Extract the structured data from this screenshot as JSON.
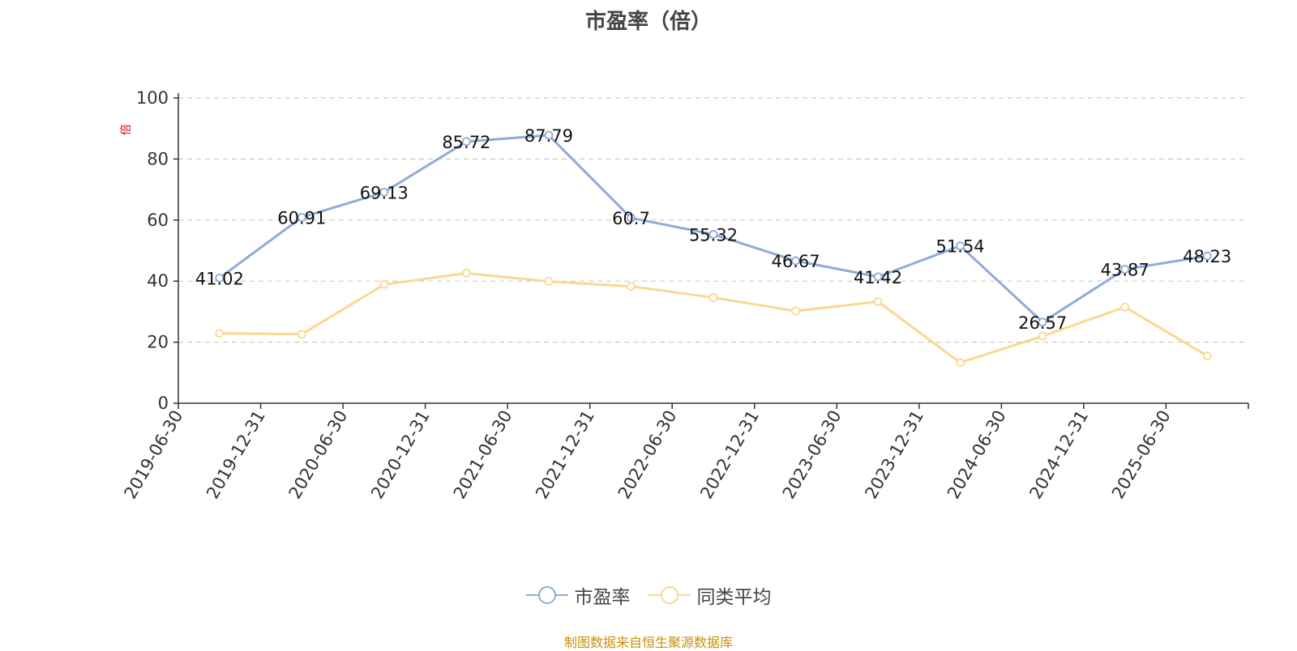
{
  "chart_data": {
    "type": "line",
    "title": "市盈率（倍）",
    "ylabel": "倍",
    "xlabel": "",
    "ylim": [
      0,
      100
    ],
    "yticks": [
      0,
      20,
      40,
      60,
      80,
      100
    ],
    "grid": "horizontal dashed",
    "legend_position": "bottom",
    "categories": [
      "2019-06-30",
      "2019-12-31",
      "2020-06-30",
      "2020-12-31",
      "2021-06-30",
      "2021-12-31",
      "2022-06-30",
      "2022-12-31",
      "2023-06-30",
      "2023-12-31",
      "2024-06-30",
      "2024-12-31",
      "2025-06-30"
    ],
    "series": [
      {
        "name": "市盈率",
        "color": "#8eabd8",
        "values": [
          41.02,
          60.91,
          69.13,
          85.72,
          87.79,
          60.7,
          55.32,
          46.67,
          41.42,
          51.54,
          26.57,
          43.87,
          48.23
        ],
        "labels": [
          "41.02",
          "60.91",
          "69.13",
          "85.72",
          "87.79",
          "60.7",
          "55.32",
          "46.67",
          "41.42",
          "51.54",
          "26.57",
          "43.87",
          "48.23"
        ]
      },
      {
        "name": "同类平均",
        "color": "#fcd890",
        "values": [
          22.9,
          22.6,
          38.9,
          42.6,
          39.9,
          38.3,
          34.6,
          30.2,
          33.3,
          13.3,
          22.0,
          31.5,
          15.5
        ]
      }
    ]
  },
  "source": "制图数据来自恒生聚源数据库"
}
